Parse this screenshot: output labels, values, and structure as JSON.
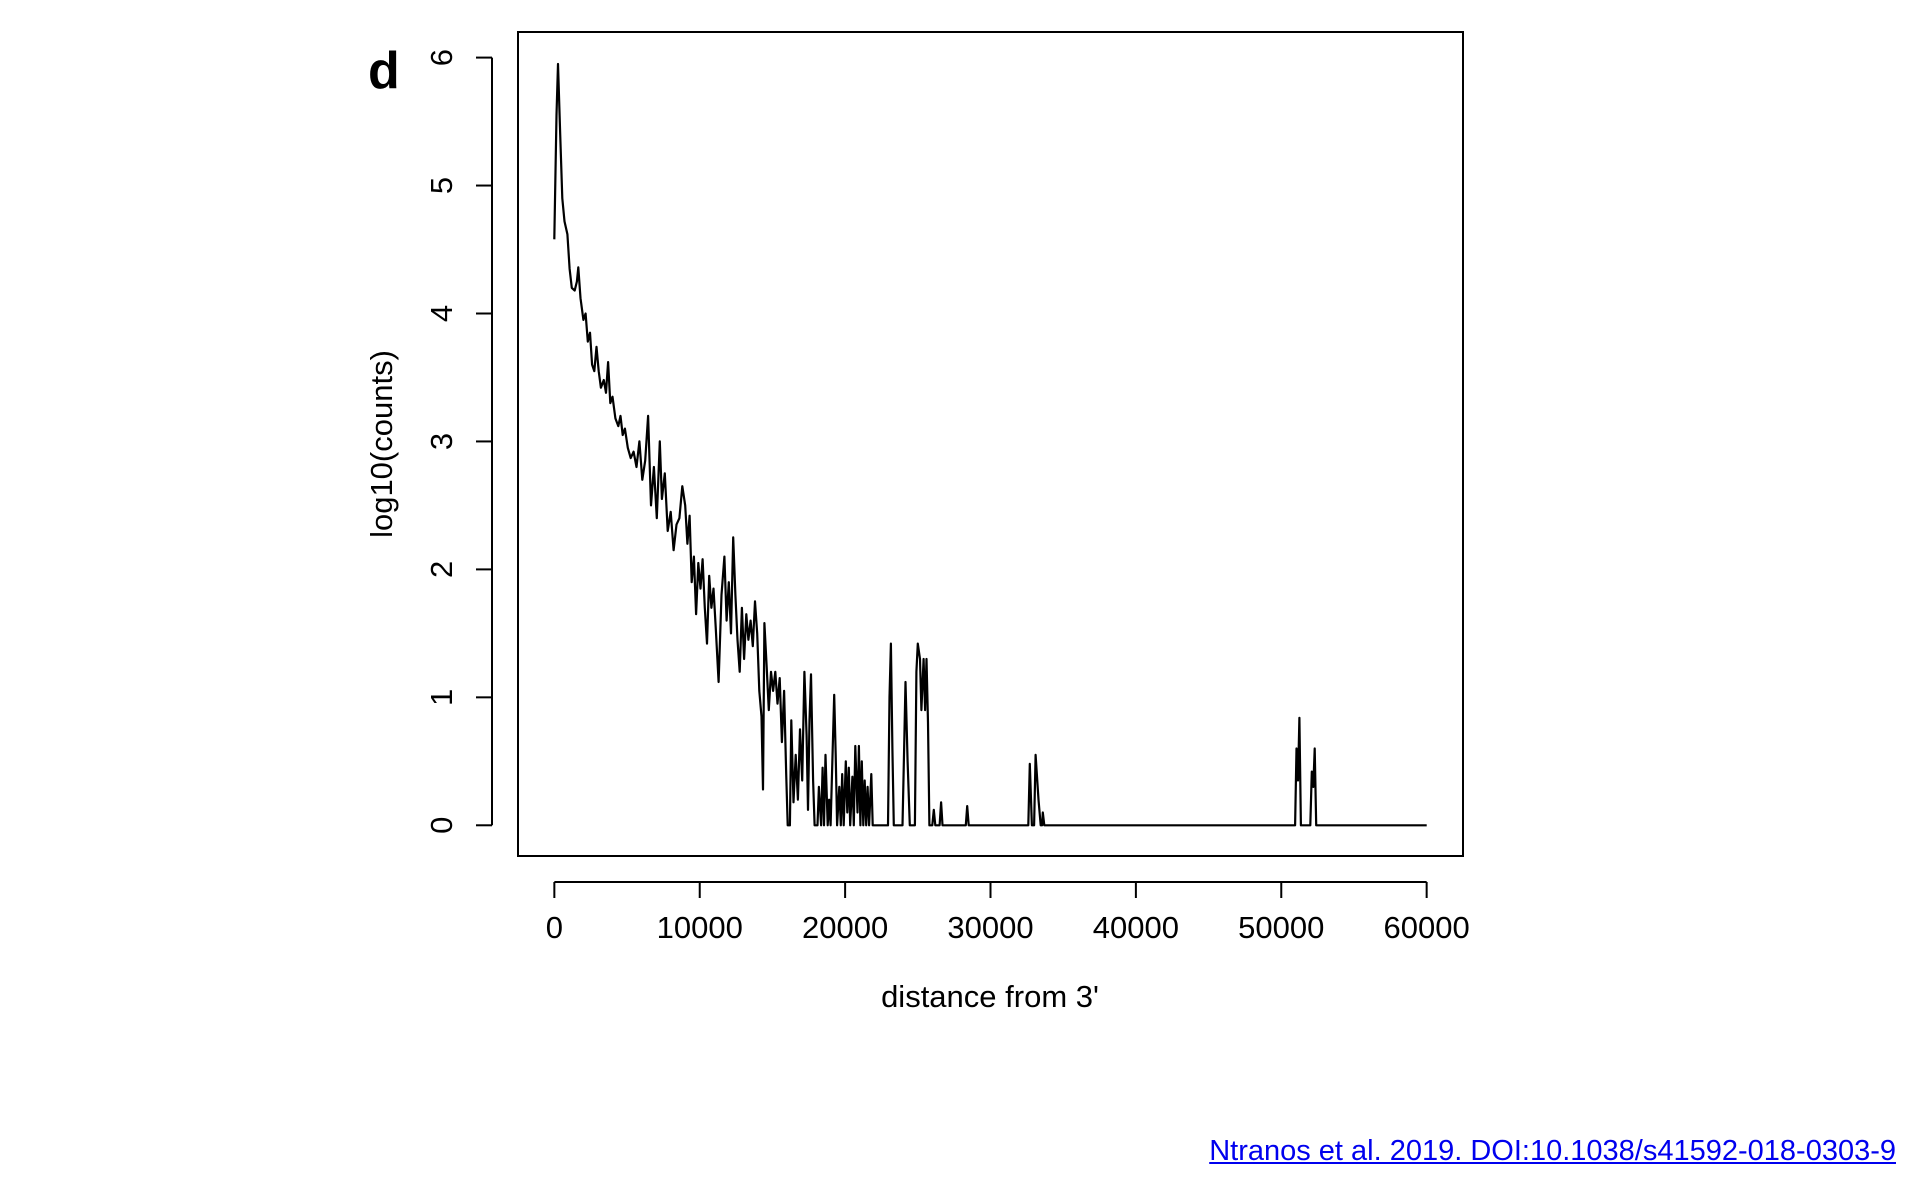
{
  "figure": {
    "panel_letter": "d",
    "citation": "Ntranos et al. 2019. DOI:10.1038/s41592-018-0303-9"
  },
  "colors": {
    "line": "#000000",
    "axis": "#000000",
    "link": "#0000ee",
    "background": "#ffffff"
  },
  "chart_data": {
    "type": "line",
    "xlabel": "distance from 3'",
    "ylabel": "log10(counts)",
    "xlim": [
      -2500,
      62500
    ],
    "ylim": [
      -0.24,
      6.2
    ],
    "xticks": [
      0,
      10000,
      20000,
      30000,
      40000,
      50000,
      60000
    ],
    "yticks": [
      0,
      1,
      2,
      3,
      4,
      5,
      6
    ],
    "grid": false,
    "legend": "none",
    "series": [
      {
        "points": [
          [
            0,
            4.58
          ],
          [
            150,
            5.55
          ],
          [
            250,
            5.95
          ],
          [
            400,
            5.4
          ],
          [
            550,
            4.9
          ],
          [
            700,
            4.72
          ],
          [
            900,
            4.62
          ],
          [
            1050,
            4.35
          ],
          [
            1200,
            4.2
          ],
          [
            1400,
            4.18
          ],
          [
            1550,
            4.25
          ],
          [
            1650,
            4.36
          ],
          [
            1800,
            4.12
          ],
          [
            2000,
            3.95
          ],
          [
            2150,
            4.0
          ],
          [
            2300,
            3.78
          ],
          [
            2450,
            3.85
          ],
          [
            2600,
            3.6
          ],
          [
            2750,
            3.55
          ],
          [
            2900,
            3.74
          ],
          [
            3050,
            3.55
          ],
          [
            3200,
            3.42
          ],
          [
            3400,
            3.48
          ],
          [
            3550,
            3.38
          ],
          [
            3700,
            3.62
          ],
          [
            3850,
            3.3
          ],
          [
            4000,
            3.35
          ],
          [
            4200,
            3.18
          ],
          [
            4400,
            3.12
          ],
          [
            4550,
            3.2
          ],
          [
            4700,
            3.05
          ],
          [
            4850,
            3.1
          ],
          [
            5050,
            2.95
          ],
          [
            5250,
            2.87
          ],
          [
            5450,
            2.92
          ],
          [
            5650,
            2.8
          ],
          [
            5850,
            3.0
          ],
          [
            6050,
            2.7
          ],
          [
            6250,
            2.85
          ],
          [
            6450,
            3.2
          ],
          [
            6650,
            2.5
          ],
          [
            6850,
            2.8
          ],
          [
            7050,
            2.4
          ],
          [
            7250,
            3.0
          ],
          [
            7400,
            2.55
          ],
          [
            7600,
            2.75
          ],
          [
            7800,
            2.3
          ],
          [
            8000,
            2.45
          ],
          [
            8200,
            2.15
          ],
          [
            8400,
            2.35
          ],
          [
            8600,
            2.4
          ],
          [
            8800,
            2.65
          ],
          [
            9000,
            2.5
          ],
          [
            9150,
            2.2
          ],
          [
            9300,
            2.42
          ],
          [
            9450,
            1.9
          ],
          [
            9600,
            2.1
          ],
          [
            9750,
            1.65
          ],
          [
            9900,
            2.05
          ],
          [
            10050,
            1.85
          ],
          [
            10200,
            2.08
          ],
          [
            10350,
            1.7
          ],
          [
            10500,
            1.42
          ],
          [
            10650,
            1.95
          ],
          [
            10800,
            1.7
          ],
          [
            10950,
            1.85
          ],
          [
            11100,
            1.55
          ],
          [
            11300,
            1.12
          ],
          [
            11500,
            1.8
          ],
          [
            11700,
            2.1
          ],
          [
            11850,
            1.6
          ],
          [
            12000,
            1.9
          ],
          [
            12150,
            1.5
          ],
          [
            12300,
            2.25
          ],
          [
            12450,
            1.8
          ],
          [
            12600,
            1.45
          ],
          [
            12750,
            1.2
          ],
          [
            12900,
            1.7
          ],
          [
            13050,
            1.3
          ],
          [
            13200,
            1.65
          ],
          [
            13350,
            1.45
          ],
          [
            13500,
            1.6
          ],
          [
            13650,
            1.4
          ],
          [
            13800,
            1.75
          ],
          [
            13950,
            1.5
          ],
          [
            14100,
            1.05
          ],
          [
            14250,
            0.85
          ],
          [
            14350,
            0.28
          ],
          [
            14450,
            1.58
          ],
          [
            14600,
            1.25
          ],
          [
            14750,
            0.9
          ],
          [
            14900,
            1.2
          ],
          [
            15050,
            1.05
          ],
          [
            15200,
            1.2
          ],
          [
            15350,
            0.95
          ],
          [
            15500,
            1.15
          ],
          [
            15650,
            0.65
          ],
          [
            15800,
            1.05
          ],
          [
            15950,
            0.4
          ],
          [
            16050,
            0.0
          ],
          [
            16200,
            0.0
          ],
          [
            16300,
            0.82
          ],
          [
            16450,
            0.18
          ],
          [
            16600,
            0.55
          ],
          [
            16750,
            0.2
          ],
          [
            16900,
            0.75
          ],
          [
            17050,
            0.35
          ],
          [
            17200,
            1.2
          ],
          [
            17350,
            0.7
          ],
          [
            17450,
            0.12
          ],
          [
            17550,
            0.82
          ],
          [
            17650,
            1.18
          ],
          [
            17800,
            0.35
          ],
          [
            17900,
            0.0
          ],
          [
            18100,
            0.0
          ],
          [
            18200,
            0.3
          ],
          [
            18350,
            0.0
          ],
          [
            18450,
            0.45
          ],
          [
            18550,
            0.0
          ],
          [
            18650,
            0.55
          ],
          [
            18800,
            0.0
          ],
          [
            18900,
            0.2
          ],
          [
            19000,
            0.0
          ],
          [
            19100,
            0.4
          ],
          [
            19250,
            1.02
          ],
          [
            19350,
            0.55
          ],
          [
            19450,
            0.0
          ],
          [
            19600,
            0.3
          ],
          [
            19700,
            0.0
          ],
          [
            19800,
            0.4
          ],
          [
            19900,
            0.0
          ],
          [
            20050,
            0.5
          ],
          [
            20150,
            0.1
          ],
          [
            20250,
            0.45
          ],
          [
            20350,
            0.0
          ],
          [
            20500,
            0.38
          ],
          [
            20600,
            0.0
          ],
          [
            20700,
            0.62
          ],
          [
            20850,
            0.1
          ],
          [
            20950,
            0.62
          ],
          [
            21050,
            0.0
          ],
          [
            21150,
            0.5
          ],
          [
            21250,
            0.0
          ],
          [
            21350,
            0.35
          ],
          [
            21450,
            0.0
          ],
          [
            21550,
            0.3
          ],
          [
            21650,
            0.0
          ],
          [
            21800,
            0.4
          ],
          [
            21900,
            0.0
          ],
          [
            22950,
            0.0
          ],
          [
            23050,
            1.0
          ],
          [
            23150,
            1.42
          ],
          [
            23250,
            0.6
          ],
          [
            23350,
            0.0
          ],
          [
            23950,
            0.0
          ],
          [
            24050,
            0.55
          ],
          [
            24150,
            1.12
          ],
          [
            24300,
            0.5
          ],
          [
            24450,
            0.0
          ],
          [
            24800,
            0.0
          ],
          [
            24900,
            1.2
          ],
          [
            25000,
            1.42
          ],
          [
            25150,
            1.3
          ],
          [
            25250,
            0.9
          ],
          [
            25400,
            1.3
          ],
          [
            25500,
            0.9
          ],
          [
            25600,
            1.3
          ],
          [
            25700,
            0.8
          ],
          [
            25800,
            0.0
          ],
          [
            26000,
            0.0
          ],
          [
            26100,
            0.12
          ],
          [
            26200,
            0.0
          ],
          [
            26500,
            0.0
          ],
          [
            26600,
            0.18
          ],
          [
            26700,
            0.0
          ],
          [
            28300,
            0.0
          ],
          [
            28400,
            0.15
          ],
          [
            28500,
            0.0
          ],
          [
            32600,
            0.0
          ],
          [
            32700,
            0.48
          ],
          [
            32850,
            0.0
          ],
          [
            33000,
            0.0
          ],
          [
            33100,
            0.55
          ],
          [
            33300,
            0.2
          ],
          [
            33450,
            0.0
          ],
          [
            33550,
            0.0
          ],
          [
            33600,
            0.1
          ],
          [
            33700,
            0.0
          ],
          [
            50950,
            0.0
          ],
          [
            51050,
            0.6
          ],
          [
            51150,
            0.35
          ],
          [
            51250,
            0.84
          ],
          [
            51350,
            0.0
          ],
          [
            52000,
            0.0
          ],
          [
            52100,
            0.42
          ],
          [
            52200,
            0.3
          ],
          [
            52300,
            0.6
          ],
          [
            52400,
            0.0
          ],
          [
            60000,
            0.0
          ]
        ]
      }
    ]
  }
}
